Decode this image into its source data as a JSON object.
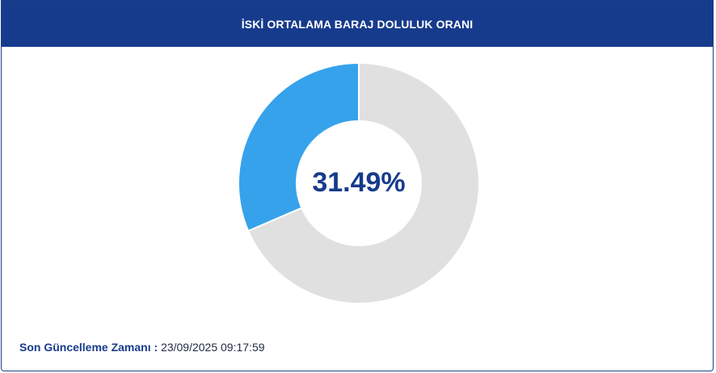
{
  "header": {
    "title": "İSKİ ORTALAMA BARAJ DOLULUK ORANI"
  },
  "chart_data": {
    "type": "pie",
    "variant": "donut",
    "center_label": "31.49%",
    "slices": [
      {
        "label": "",
        "value": 31.49,
        "color": "#36a2eb"
      },
      {
        "label": "",
        "value": 68.51,
        "color": "#e0e0e0"
      }
    ],
    "legend": "none"
  },
  "footer": {
    "label": "Son Güncelleme Zamanı",
    "separator": " : ",
    "timestamp": "23/09/2025 09:17:59"
  },
  "colors": {
    "header_bg": "#173b8c",
    "filled": "#36a2eb",
    "empty": "#e0e0e0",
    "text_primary": "#173b8c"
  }
}
